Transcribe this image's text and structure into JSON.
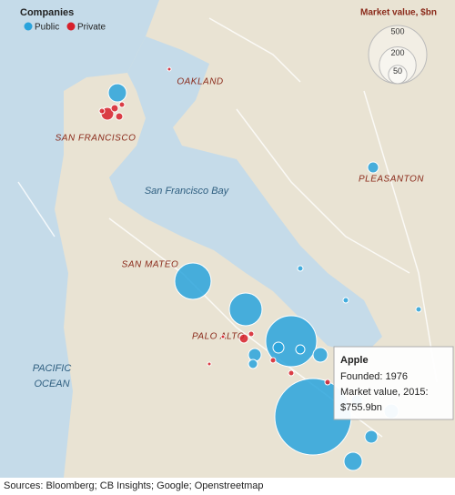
{
  "legend": {
    "title": "Companies",
    "items": [
      "Public",
      "Private"
    ]
  },
  "size_legend": {
    "title": "Market value, $bn",
    "values": [
      500,
      200,
      50
    ]
  },
  "places": [
    "OAKLAND",
    "SAN FRANCISCO",
    "San Francisco Bay",
    "PLEASANTON",
    "SAN MATEO",
    "PALO ALTO"
  ],
  "ocean": [
    "PACIFIC",
    "OCEAN"
  ],
  "tooltip": {
    "name": "Apple",
    "lines": [
      "Founded: 1976",
      "Market value, 2015:",
      "$755.9bn"
    ]
  },
  "source": "Sources: Bloomberg; CB Insights; Google; Openstreetmap"
}
